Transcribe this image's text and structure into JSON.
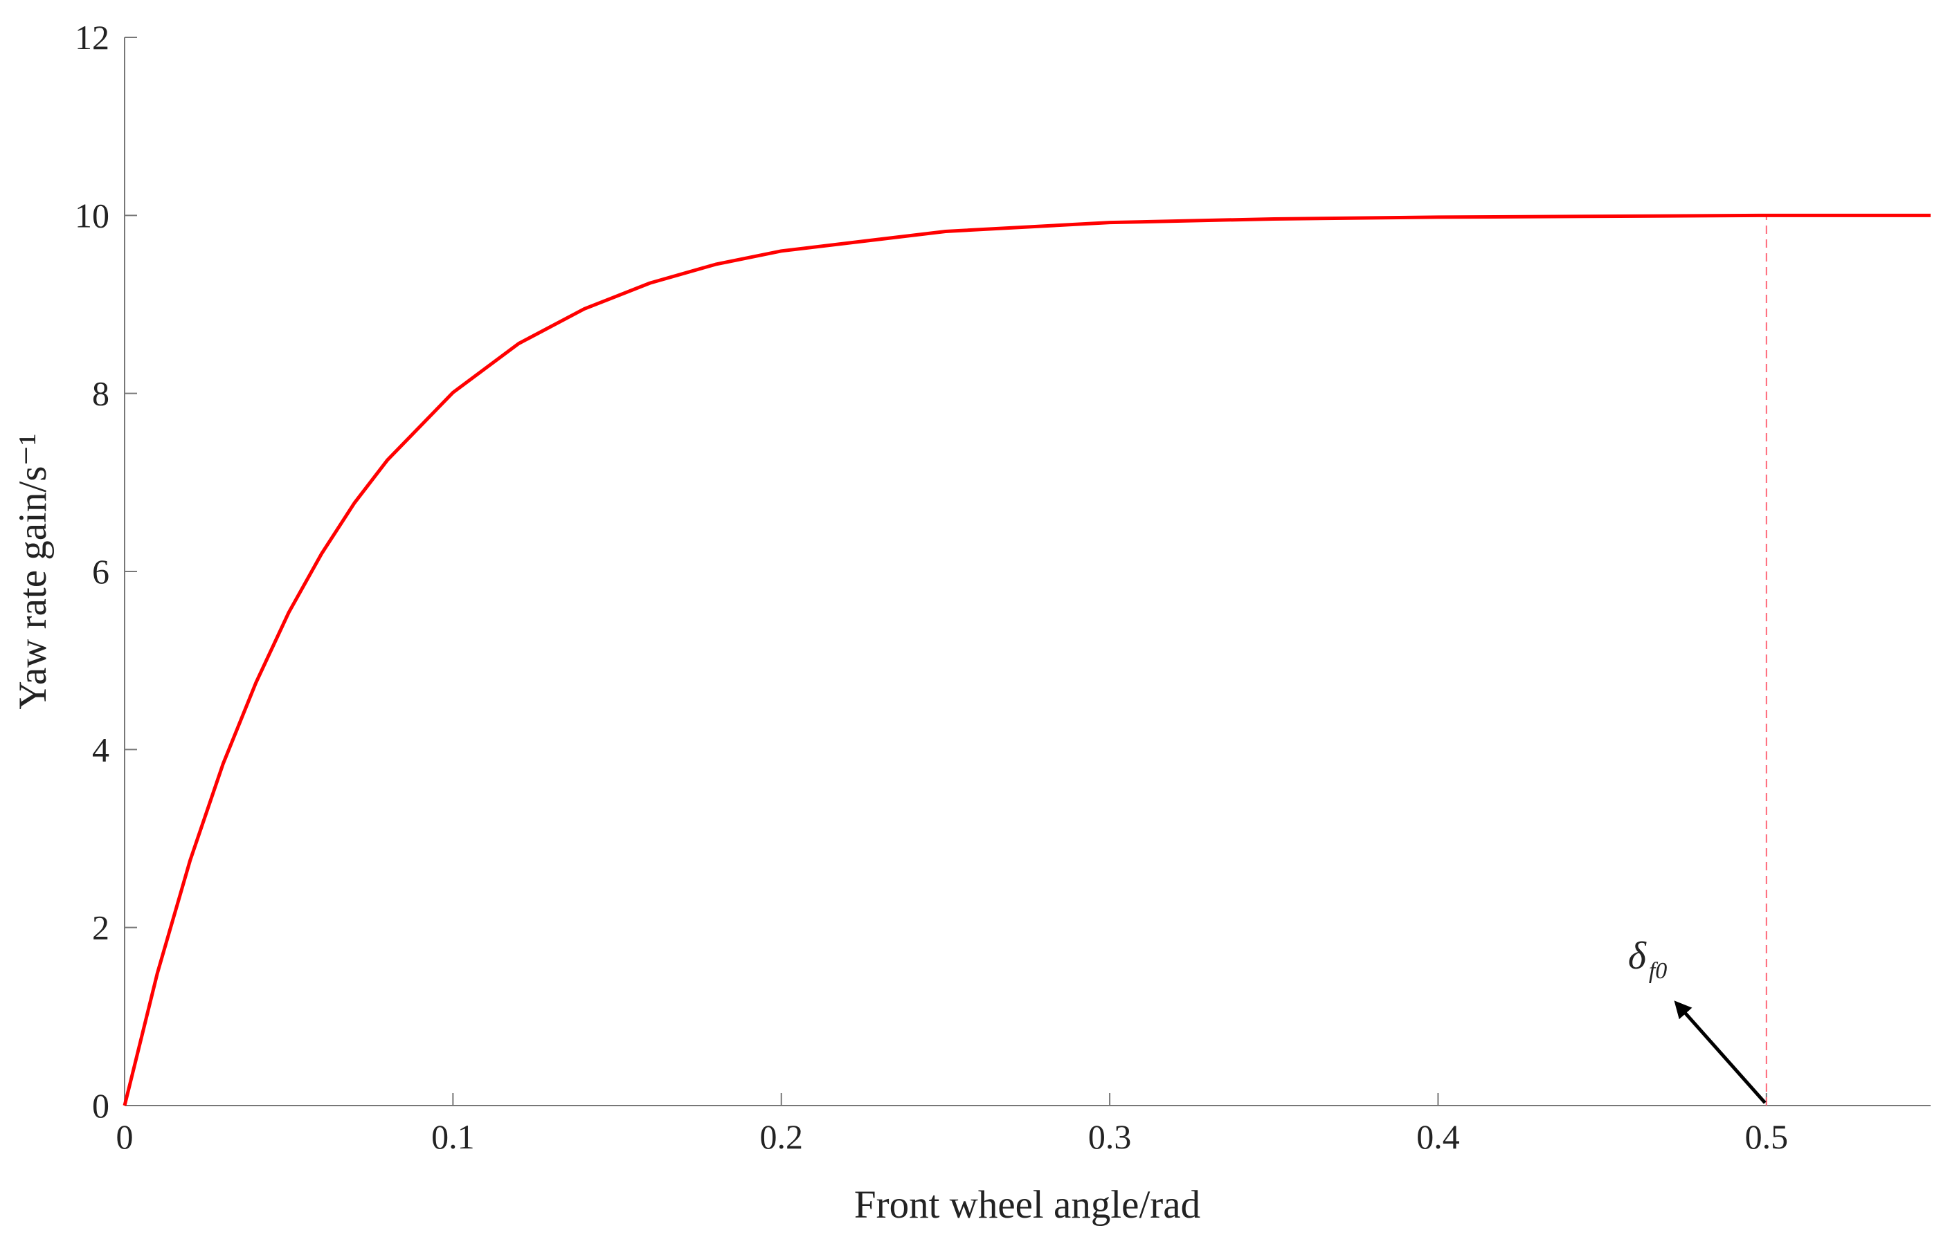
{
  "chart_data": {
    "type": "line",
    "x_label": "Front wheel angle/rad",
    "y_label": "Yaw rate gain/s⁻¹",
    "x": [
      0,
      0.01,
      0.02,
      0.03,
      0.04,
      0.05,
      0.06,
      0.07,
      0.08,
      0.1,
      0.12,
      0.14,
      0.16,
      0.18,
      0.2,
      0.25,
      0.3,
      0.35,
      0.4,
      0.45,
      0.5,
      0.55
    ],
    "series": [
      {
        "color": "#ff0000",
        "values": [
          0,
          1.49,
          2.76,
          3.84,
          4.75,
          5.54,
          6.2,
          6.77,
          7.25,
          8.01,
          8.56,
          8.95,
          9.24,
          9.45,
          9.6,
          9.82,
          9.92,
          9.96,
          9.98,
          9.99,
          10,
          10
        ]
      }
    ],
    "xlim": [
      0,
      0.55
    ],
    "xticks": [
      0,
      0.1,
      0.2,
      0.3,
      0.4,
      0.5
    ],
    "ylim": [
      0,
      12
    ],
    "yticks": [
      0,
      2,
      4,
      6,
      8,
      10,
      12
    ],
    "reference_line": {
      "x": 0.5,
      "y": 10,
      "color": "#ff6677"
    },
    "annotation": {
      "text": "δ",
      "subscript": "f0"
    }
  }
}
